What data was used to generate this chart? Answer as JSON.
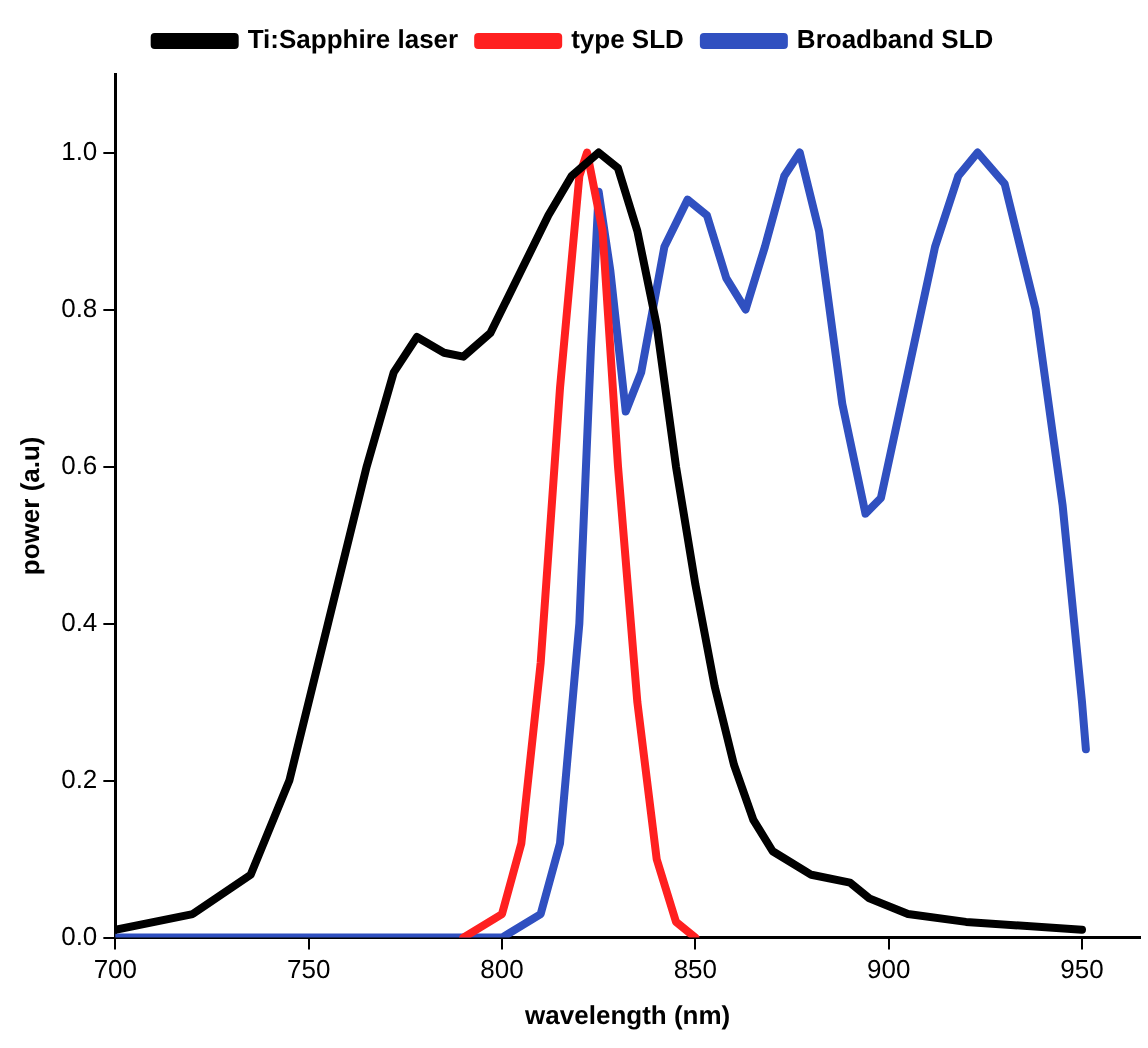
{
  "chart_data": {
    "type": "line",
    "xlabel": "wavelength (nm)",
    "ylabel": "power (a.u)",
    "xlim": [
      700,
      965
    ],
    "ylim": [
      0,
      1.1
    ],
    "xticks": [
      700,
      750,
      800,
      850,
      900,
      950
    ],
    "yticks": [
      {
        "value": 0,
        "label": "0.0"
      },
      {
        "value": 0.2,
        "label": "0.2"
      },
      {
        "value": 0.4,
        "label": "0.4"
      },
      {
        "value": 0.6,
        "label": "0.6"
      },
      {
        "value": 0.8,
        "label": "0.8"
      },
      {
        "value": 1,
        "label": "1.0"
      }
    ],
    "grid": false,
    "legend": "top",
    "marker": "none",
    "line_style": "solid",
    "series": [
      {
        "name": "Ti:Sapphire laser",
        "color": "#000000",
        "x": [
          700,
          720,
          735,
          745,
          755,
          765,
          772,
          778,
          785,
          790,
          797,
          805,
          812,
          818,
          825,
          830,
          835,
          840,
          845,
          850,
          855,
          860,
          865,
          870,
          880,
          890,
          895,
          905,
          920,
          950
        ],
        "values": [
          0.01,
          0.03,
          0.08,
          0.2,
          0.4,
          0.6,
          0.72,
          0.765,
          0.745,
          0.74,
          0.77,
          0.85,
          0.92,
          0.97,
          1.0,
          0.98,
          0.9,
          0.78,
          0.6,
          0.45,
          0.32,
          0.22,
          0.15,
          0.11,
          0.08,
          0.07,
          0.05,
          0.03,
          0.02,
          0.01
        ]
      },
      {
        "name": "type SLD",
        "color": "#ff2020",
        "x": [
          790,
          800,
          805,
          810,
          815,
          820,
          822,
          826,
          830,
          835,
          840,
          845,
          850
        ],
        "values": [
          0,
          0.03,
          0.12,
          0.35,
          0.7,
          0.97,
          1.0,
          0.9,
          0.6,
          0.3,
          0.1,
          0.02,
          0
        ]
      },
      {
        "name": "Broadband SLD",
        "color": "#3050c0",
        "x": [
          700,
          800,
          810,
          815,
          820,
          823,
          825,
          828,
          832,
          836,
          842,
          848,
          853,
          858,
          863,
          868,
          873,
          877,
          882,
          888,
          894,
          898,
          905,
          912,
          918,
          923,
          930,
          938,
          945,
          950,
          951
        ],
        "values": [
          0,
          0,
          0.03,
          0.12,
          0.4,
          0.75,
          0.95,
          0.85,
          0.67,
          0.72,
          0.88,
          0.94,
          0.92,
          0.84,
          0.8,
          0.88,
          0.97,
          1.0,
          0.9,
          0.68,
          0.54,
          0.56,
          0.72,
          0.88,
          0.97,
          1.0,
          0.96,
          0.8,
          0.55,
          0.3,
          0.24
        ]
      }
    ]
  }
}
